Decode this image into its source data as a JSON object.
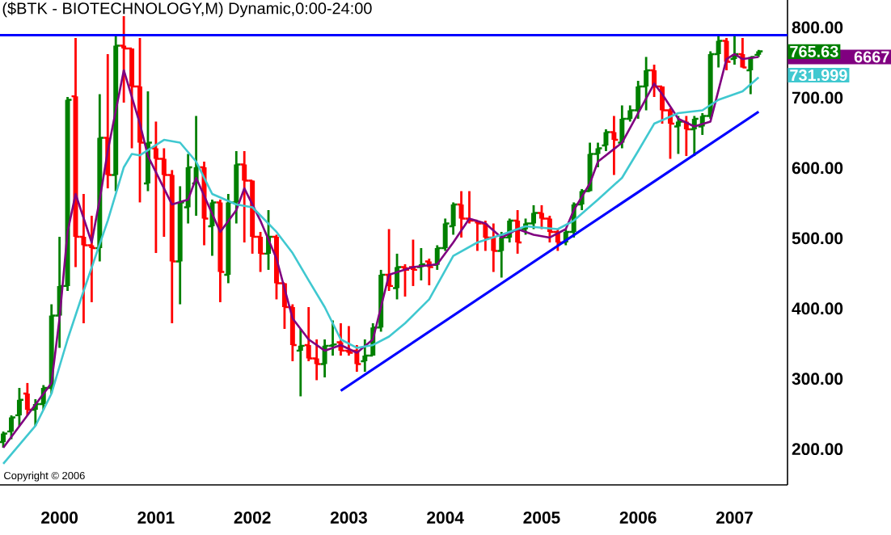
{
  "chart_data": {
    "type": "candlestick",
    "title": "($BTK - BIOTECHNOLOGY,M) Dynamic,0:00-24:00",
    "x": [
      "1999-06",
      "1999-07",
      "1999-08",
      "1999-09",
      "1999-10",
      "1999-11",
      "1999-12",
      "2000-01",
      "2000-02",
      "2000-03",
      "2000-04",
      "2000-05",
      "2000-06",
      "2000-07",
      "2000-08",
      "2000-09",
      "2000-10",
      "2000-11",
      "2000-12",
      "2001-01",
      "2001-02",
      "2001-03",
      "2001-04",
      "2001-05",
      "2001-06",
      "2001-07",
      "2001-08",
      "2001-09",
      "2001-10",
      "2001-11",
      "2001-12",
      "2002-01",
      "2002-02",
      "2002-03",
      "2002-04",
      "2002-05",
      "2002-06",
      "2002-07",
      "2002-08",
      "2002-09",
      "2002-10",
      "2002-11",
      "2002-12",
      "2003-01",
      "2003-02",
      "2003-03",
      "2003-04",
      "2003-05",
      "2003-06",
      "2003-07",
      "2003-08",
      "2003-09",
      "2003-10",
      "2003-11",
      "2003-12",
      "2004-01",
      "2004-02",
      "2004-03",
      "2004-04",
      "2004-05",
      "2004-06",
      "2004-07",
      "2004-08",
      "2004-09",
      "2004-10",
      "2004-11",
      "2004-12",
      "2005-01",
      "2005-02",
      "2005-03",
      "2005-04",
      "2005-05",
      "2005-06",
      "2005-07",
      "2005-08",
      "2005-09",
      "2005-10",
      "2005-11",
      "2005-12",
      "2006-01",
      "2006-02",
      "2006-03",
      "2006-04",
      "2006-05",
      "2006-06",
      "2006-07",
      "2006-08",
      "2006-09",
      "2006-10",
      "2006-11",
      "2006-12",
      "2007-01",
      "2007-02",
      "2007-03",
      "2007-04"
    ],
    "ohlc": [
      [
        210,
        225,
        202,
        222
      ],
      [
        225,
        248,
        214,
        245
      ],
      [
        248,
        287,
        233,
        270
      ],
      [
        279,
        294,
        248,
        256
      ],
      [
        256,
        271,
        233,
        264
      ],
      [
        264,
        291,
        256,
        287
      ],
      [
        287,
        406,
        279,
        390
      ],
      [
        390,
        502,
        344,
        432
      ],
      [
        432,
        701,
        425,
        697
      ],
      [
        702,
        785,
        459,
        502
      ],
      [
        502,
        563,
        379,
        490
      ],
      [
        490,
        532,
        409,
        486
      ],
      [
        486,
        705,
        467,
        643
      ],
      [
        643,
        762,
        571,
        590
      ],
      [
        590,
        789,
        567,
        774
      ],
      [
        774,
        816,
        693,
        770
      ],
      [
        770,
        770,
        628,
        716
      ],
      [
        716,
        785,
        551,
        636
      ],
      [
        578,
        709,
        567,
        636
      ],
      [
        628,
        666,
        479,
        613
      ],
      [
        613,
        628,
        502,
        590
      ],
      [
        590,
        597,
        379,
        467
      ],
      [
        467,
        574,
        406,
        551
      ],
      [
        544,
        620,
        521,
        601
      ],
      [
        578,
        674,
        532,
        601
      ],
      [
        601,
        609,
        490,
        528
      ],
      [
        517,
        555,
        475,
        551
      ],
      [
        551,
        555,
        409,
        452
      ],
      [
        448,
        563,
        436,
        551
      ],
      [
        551,
        624,
        521,
        605
      ],
      [
        605,
        624,
        494,
        582
      ],
      [
        582,
        582,
        478,
        502
      ],
      [
        502,
        509,
        452,
        478
      ],
      [
        478,
        540,
        455,
        502
      ],
      [
        502,
        505,
        413,
        436
      ],
      [
        436,
        436,
        371,
        402
      ],
      [
        402,
        406,
        325,
        348
      ],
      [
        340,
        371,
        275,
        347
      ],
      [
        348,
        402,
        325,
        329
      ],
      [
        329,
        356,
        298,
        321
      ],
      [
        321,
        356,
        302,
        347
      ],
      [
        347,
        383,
        333,
        349
      ],
      [
        352,
        379,
        333,
        340
      ],
      [
        340,
        375,
        333,
        337
      ],
      [
        340,
        348,
        310,
        321
      ],
      [
        325,
        356,
        310,
        333
      ],
      [
        333,
        379,
        333,
        373
      ],
      [
        373,
        455,
        367,
        448
      ],
      [
        448,
        513,
        425,
        432
      ],
      [
        429,
        478,
        413,
        459
      ],
      [
        459,
        463,
        417,
        455
      ],
      [
        459,
        498,
        432,
        455
      ],
      [
        459,
        486,
        440,
        463
      ],
      [
        467,
        471,
        433,
        459
      ],
      [
        462,
        490,
        455,
        486
      ],
      [
        486,
        528,
        482,
        521
      ],
      [
        517,
        551,
        505,
        548
      ],
      [
        548,
        567,
        501,
        528
      ],
      [
        528,
        567,
        521,
        525
      ],
      [
        525,
        525,
        482,
        521
      ],
      [
        521,
        525,
        482,
        501
      ],
      [
        501,
        521,
        452,
        482
      ],
      [
        482,
        509,
        444,
        501
      ],
      [
        501,
        528,
        494,
        525
      ],
      [
        525,
        540,
        478,
        494
      ],
      [
        513,
        528,
        505,
        521
      ],
      [
        521,
        547,
        513,
        536
      ],
      [
        536,
        547,
        513,
        528
      ],
      [
        528,
        532,
        494,
        509
      ],
      [
        509,
        513,
        482,
        494
      ],
      [
        494,
        513,
        490,
        509
      ],
      [
        509,
        551,
        501,
        548
      ],
      [
        548,
        570,
        540,
        567
      ],
      [
        567,
        636,
        567,
        620
      ],
      [
        620,
        636,
        601,
        628
      ],
      [
        632,
        655,
        624,
        651
      ],
      [
        651,
        674,
        590,
        640
      ],
      [
        636,
        689,
        628,
        670
      ],
      [
        670,
        689,
        666,
        682
      ],
      [
        682,
        724,
        670,
        716
      ],
      [
        716,
        758,
        682,
        739
      ],
      [
        739,
        747,
        701,
        716
      ],
      [
        716,
        716,
        663,
        682
      ],
      [
        682,
        685,
        613,
        663
      ],
      [
        659,
        674,
        620,
        666
      ],
      [
        666,
        674,
        617,
        655
      ],
      [
        655,
        674,
        617,
        670
      ],
      [
        659,
        678,
        647,
        674
      ],
      [
        674,
        766,
        670,
        762
      ],
      [
        762,
        789,
        743,
        781
      ],
      [
        781,
        785,
        739,
        751
      ],
      [
        755,
        789,
        747,
        762
      ],
      [
        762,
        785,
        743,
        743
      ],
      [
        739,
        758,
        705,
        758
      ],
      [
        761,
        768,
        758,
        766
      ]
    ],
    "colors": [
      "#008000",
      "#008000",
      "#008000",
      "#ff0000",
      "#008000",
      "#008000",
      "#008000",
      "#008000",
      "#008000",
      "#ff0000",
      "#ff0000",
      "#ff0000",
      "#008000",
      "#ff0000",
      "#008000",
      "#ff0000",
      "#ff0000",
      "#ff0000",
      "#008000",
      "#ff0000",
      "#ff0000",
      "#ff0000",
      "#008000",
      "#008000",
      "#008000",
      "#ff0000",
      "#008000",
      "#ff0000",
      "#008000",
      "#008000",
      "#ff0000",
      "#ff0000",
      "#ff0000",
      "#008000",
      "#ff0000",
      "#ff0000",
      "#ff0000",
      "#008000",
      "#ff0000",
      "#ff0000",
      "#008000",
      "#008000",
      "#ff0000",
      "#ff0000",
      "#ff0000",
      "#008000",
      "#008000",
      "#008000",
      "#ff0000",
      "#008000",
      "#ff0000",
      "#ff0000",
      "#008000",
      "#ff0000",
      "#008000",
      "#008000",
      "#008000",
      "#ff0000",
      "#ff0000",
      "#ff0000",
      "#ff0000",
      "#ff0000",
      "#008000",
      "#008000",
      "#ff0000",
      "#008000",
      "#008000",
      "#ff0000",
      "#ff0000",
      "#ff0000",
      "#008000",
      "#008000",
      "#008000",
      "#008000",
      "#008000",
      "#008000",
      "#ff0000",
      "#008000",
      "#008000",
      "#008000",
      "#008000",
      "#ff0000",
      "#ff0000",
      "#ff0000",
      "#008000",
      "#ff0000",
      "#008000",
      "#008000",
      "#008000",
      "#008000",
      "#ff0000",
      "#008000",
      "#ff0000",
      "#008000",
      "#008000"
    ],
    "series": [
      {
        "type": "line",
        "color": "#800080",
        "x": [
          "1999-06",
          "1999-09",
          "1999-12",
          "2000-01",
          "2000-02",
          "2000-03",
          "2000-05",
          "2000-06",
          "2000-07",
          "2000-09",
          "2000-11",
          "2000-12",
          "2001-03",
          "2001-05",
          "2001-06",
          "2001-09",
          "2001-11",
          "2001-12",
          "2002-02",
          "2002-04",
          "2002-06",
          "2002-08",
          "2002-10",
          "2002-12",
          "2003-02",
          "2003-04",
          "2003-06",
          "2003-09",
          "2003-12",
          "2004-02",
          "2004-04",
          "2004-06",
          "2004-08",
          "2004-10",
          "2004-12",
          "2005-02",
          "2005-04",
          "2005-05",
          "2005-07",
          "2005-08",
          "2005-11",
          "2006-01",
          "2006-03",
          "2006-04",
          "2006-06",
          "2006-08",
          "2006-10",
          "2006-12",
          "2007-01",
          "2007-02",
          "2007-04"
        ],
        "values": [
          202,
          248,
          294,
          386,
          509,
          563,
          494,
          555,
          624,
          739,
          663,
          617,
          548,
          555,
          586,
          509,
          540,
          571,
          525,
          471,
          386,
          356,
          340,
          348,
          337,
          356,
          448,
          459,
          463,
          494,
          528,
          521,
          501,
          513,
          505,
          501,
          513,
          540,
          578,
          609,
          636,
          678,
          720,
          705,
          670,
          659,
          666,
          755,
          762,
          755,
          758
        ]
      },
      {
        "type": "line",
        "color": "#40c8d0",
        "x": [
          "1999-06",
          "1999-10",
          "1999-12",
          "2000-02",
          "2000-04",
          "2000-07",
          "2000-09",
          "2000-10",
          "2000-11",
          "2001-02",
          "2001-04",
          "2001-06",
          "2001-08",
          "2001-11",
          "2002-01",
          "2002-04",
          "2002-06",
          "2002-08",
          "2002-10",
          "2002-12",
          "2003-02",
          "2003-04",
          "2003-06",
          "2003-08",
          "2003-11",
          "2004-02",
          "2004-05",
          "2004-08",
          "2004-11",
          "2005-03",
          "2005-05",
          "2005-08",
          "2005-11",
          "2006-01",
          "2006-03",
          "2006-06",
          "2006-09",
          "2006-11",
          "2007-02",
          "2007-04"
        ],
        "values": [
          179,
          233,
          279,
          356,
          425,
          525,
          601,
          620,
          618,
          640,
          636,
          609,
          563,
          548,
          544,
          509,
          479,
          440,
          402,
          356,
          344,
          348,
          360,
          379,
          413,
          475,
          494,
          505,
          517,
          513,
          525,
          555,
          586,
          624,
          663,
          678,
          682,
          697,
          709,
          729
        ]
      },
      {
        "type": "line",
        "color": "#0000ff",
        "x": [
          "2002-12",
          "2007-04"
        ],
        "values": [
          283,
          680
        ]
      }
    ],
    "ref_lines": [
      {
        "axis": "y",
        "value": 789,
        "color": "#0000ff"
      }
    ],
    "annotations": [
      {
        "text": "765.63",
        "x": "2007-04",
        "y": 765.63
      },
      {
        "text": "731.999",
        "x": "2007-04",
        "y": 732
      },
      "6667",
      "Copyright © 2006"
    ],
    "xlim": [
      "1999-05-19",
      "2007-07-19"
    ],
    "xticks": [
      {
        "value": "2000-01",
        "label": "2000"
      },
      {
        "value": "2001-01",
        "label": "2001"
      },
      {
        "value": "2002-01",
        "label": "2002"
      },
      {
        "value": "2003-01",
        "label": "2003"
      },
      {
        "value": "2004-01",
        "label": "2004"
      },
      {
        "value": "2005-01",
        "label": "2005"
      },
      {
        "value": "2006-01",
        "label": "2006"
      },
      {
        "value": "2007-01",
        "label": "2007"
      }
    ],
    "ylim": [
      149,
      839
    ],
    "yticks": [
      {
        "value": 200,
        "label": "200.00"
      },
      {
        "value": 300,
        "label": "300.00"
      },
      {
        "value": 400,
        "label": "400.00"
      },
      {
        "value": 500,
        "label": "500.00"
      },
      {
        "value": 600,
        "label": "600.00"
      },
      {
        "value": 700,
        "label": "700.00"
      },
      {
        "value": 800,
        "label": "800.00"
      }
    ]
  }
}
